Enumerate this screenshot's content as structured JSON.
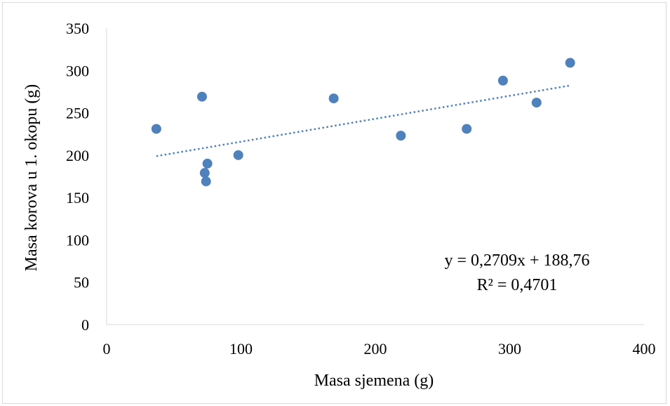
{
  "chart_data": {
    "type": "scatter",
    "title": "",
    "xlabel": "Masa sjemena (g)",
    "ylabel": "Masa korova u 1. okopu (g)",
    "xlim": [
      0,
      400
    ],
    "ylim": [
      0,
      350
    ],
    "xticks": [
      0,
      100,
      200,
      300,
      400
    ],
    "yticks": [
      0,
      50,
      100,
      150,
      200,
      250,
      300,
      350
    ],
    "grid": false,
    "legend": "none",
    "series": [
      {
        "x": [
          37,
          71,
          73,
          74,
          75,
          98,
          169,
          219,
          268,
          295,
          320,
          345
        ],
        "y": [
          231,
          269,
          179,
          169,
          190,
          200,
          267,
          223,
          231,
          288,
          262,
          309
        ]
      }
    ],
    "trendline": {
      "type": "linear",
      "slope": 0.2709,
      "intercept": 188.76,
      "x_range": [
        37,
        345
      ],
      "style": "dotted"
    },
    "annotations": {
      "equation": "y = 0,2709x + 188,76",
      "r_squared": "R² = 0,4701"
    },
    "colors": {
      "marker": "#4f81bd",
      "trendline": "#4f81bd",
      "axis": "#d9d9d9"
    }
  }
}
